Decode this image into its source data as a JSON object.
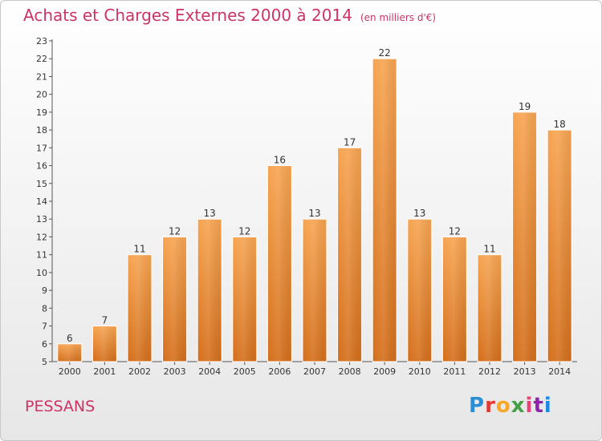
{
  "header": {
    "title": "Achats et Charges Externes 2000 à 2014",
    "subtitle": "(en milliers d'€)"
  },
  "footer": {
    "place": "PESSANS",
    "logo_letters": [
      "P",
      "r",
      "o",
      "x",
      "i",
      "t",
      "i"
    ],
    "logo_colors": [
      "#2a8fd4",
      "#e53935",
      "#f9a825",
      "#43a047",
      "#ec407a",
      "#8e24aa",
      "#1e88e5"
    ]
  },
  "chart_data": {
    "type": "bar",
    "title": "Achats et Charges Externes 2000 à 2014",
    "subtitle": "(en milliers d'€)",
    "xlabel": "",
    "ylabel": "",
    "categories": [
      "2000",
      "2001",
      "2002",
      "2003",
      "2004",
      "2005",
      "2006",
      "2007",
      "2008",
      "2009",
      "2010",
      "2011",
      "2012",
      "2013",
      "2014"
    ],
    "values": [
      6,
      7,
      11,
      12,
      13,
      12,
      16,
      13,
      17,
      22,
      13,
      12,
      11,
      19,
      18
    ],
    "ylim": [
      5,
      23
    ],
    "yticks": [
      5,
      6,
      7,
      8,
      9,
      10,
      11,
      12,
      13,
      14,
      15,
      16,
      17,
      18,
      19,
      20,
      21,
      22,
      23
    ],
    "grid": false,
    "bar_color": "#f0922e"
  }
}
